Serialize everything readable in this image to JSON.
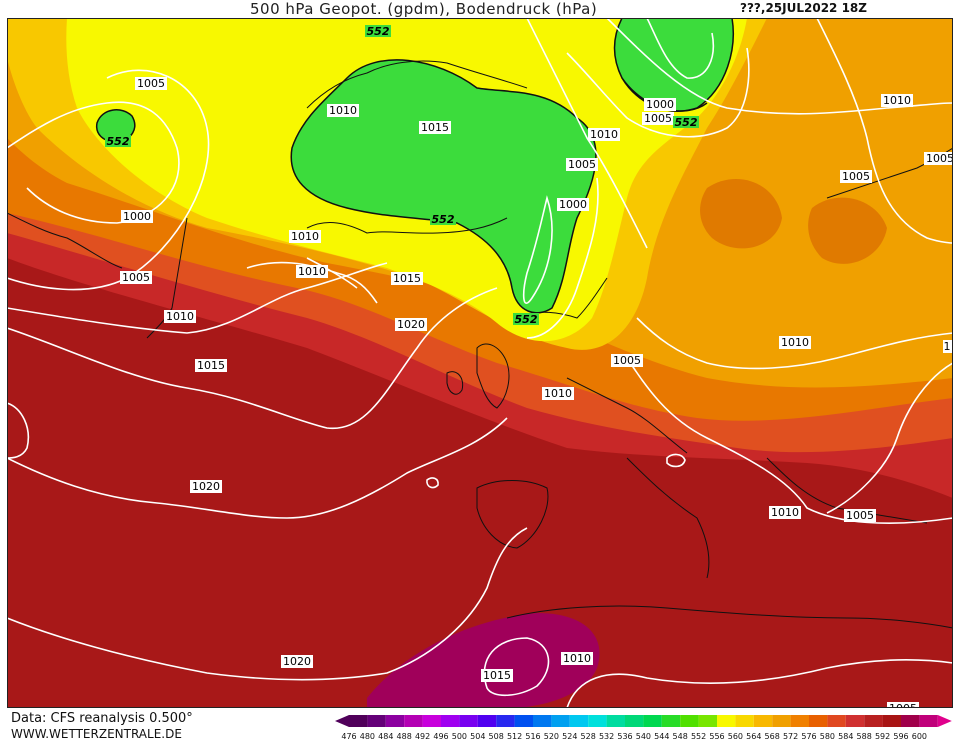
{
  "header": {
    "title": "500 hPa Geopot. (gpdm), Bodendruck (hPa)",
    "datetime": "???,25JUL2022 18Z"
  },
  "footer": {
    "source": "Data: CFS reanalysis 0.500°",
    "website": "WWW.WETTERZENTRALE.DE"
  },
  "colors": {
    "green": "#3cdc3c",
    "yellow": "#f8f800",
    "light_orange": "#f8c800",
    "orange": "#f0a000",
    "dark_orange": "#e87800",
    "red_orange": "#e05020",
    "red": "#c82828",
    "dark_red": "#a81818",
    "magenta_red": "#a0005a",
    "isobar": "#ffffff",
    "coast": "#111111"
  },
  "scale": {
    "values": [
      "476",
      "480",
      "484",
      "488",
      "492",
      "496",
      "500",
      "504",
      "508",
      "512",
      "516",
      "520",
      "524",
      "528",
      "532",
      "536",
      "540",
      "544",
      "548",
      "552",
      "556",
      "560",
      "564",
      "568",
      "572",
      "576",
      "580",
      "584",
      "588",
      "592",
      "596",
      "600"
    ],
    "colors": [
      "#50005a",
      "#640078",
      "#8c00a0",
      "#b400b4",
      "#c800dc",
      "#a000f0",
      "#7800f0",
      "#5000f0",
      "#2828f0",
      "#0050f0",
      "#0078f0",
      "#00a0f0",
      "#00c8f0",
      "#00e0dc",
      "#00dca0",
      "#00d878",
      "#00d850",
      "#28dc28",
      "#50e000",
      "#78e600",
      "#f8f800",
      "#f8d800",
      "#f8b800",
      "#f0a000",
      "#f08000",
      "#e86000",
      "#e04820",
      "#d03030",
      "#b82020",
      "#a81414",
      "#a0004a",
      "#c0007a"
    ],
    "left_arrow_color": "#50005a",
    "right_arrow_color": "#e0008c"
  },
  "isobar_labels": [
    {
      "text": "1005"
    },
    {
      "text": "552"
    },
    {
      "text": "1000"
    },
    {
      "text": "1005"
    },
    {
      "text": "1010"
    },
    {
      "text": "552"
    },
    {
      "text": "1010"
    },
    {
      "text": "1015"
    },
    {
      "text": "1000"
    },
    {
      "text": "1005"
    },
    {
      "text": "552"
    },
    {
      "text": "1010"
    },
    {
      "text": "1005"
    },
    {
      "text": "1000"
    },
    {
      "text": "1010"
    },
    {
      "text": "1010"
    },
    {
      "text": "1005"
    },
    {
      "text": "1010"
    },
    {
      "text": "1015"
    },
    {
      "text": "552"
    },
    {
      "text": "1020"
    },
    {
      "text": "1015"
    },
    {
      "text": "552"
    },
    {
      "text": "1005"
    },
    {
      "text": "1010"
    },
    {
      "text": "1010"
    },
    {
      "text": "1020"
    },
    {
      "text": "1010"
    },
    {
      "text": "1005"
    },
    {
      "text": "1020"
    },
    {
      "text": "1010"
    },
    {
      "text": "1015"
    },
    {
      "text": "1005"
    },
    {
      "text": "1005"
    },
    {
      "text": "1"
    }
  ]
}
